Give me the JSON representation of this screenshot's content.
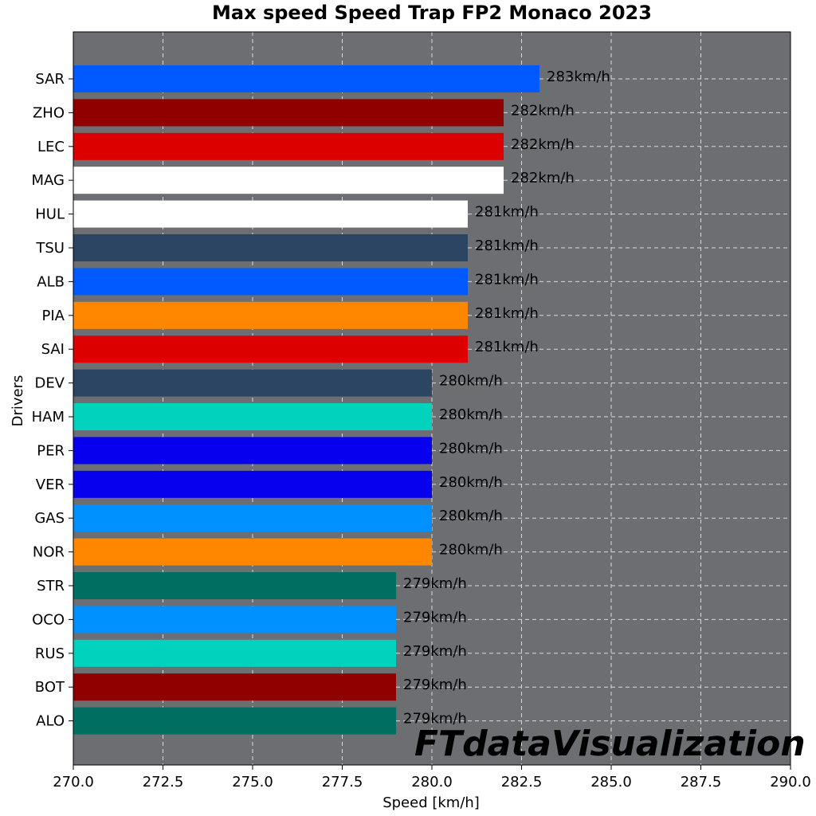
{
  "chart_data": {
    "type": "bar",
    "orientation": "horizontal",
    "title": "Max speed Speed Trap FP2 Monaco 2023",
    "xlabel": "Speed [km/h]",
    "ylabel": "Drivers",
    "xlim": [
      270.0,
      290.0
    ],
    "x_ticks": [
      "270.0",
      "272.5",
      "275.0",
      "277.5",
      "280.0",
      "282.5",
      "285.0",
      "287.5",
      "290.0"
    ],
    "grid": true,
    "background_color": "#6c6e72",
    "value_suffix": "km/h",
    "categories": [
      "SAR",
      "ZHO",
      "LEC",
      "MAG",
      "HUL",
      "TSU",
      "ALB",
      "PIA",
      "SAI",
      "DEV",
      "HAM",
      "PER",
      "VER",
      "GAS",
      "NOR",
      "STR",
      "OCO",
      "RUS",
      "BOT",
      "ALO"
    ],
    "values": [
      283,
      282,
      282,
      282,
      281,
      281,
      281,
      281,
      281,
      280,
      280,
      280,
      280,
      280,
      280,
      279,
      279,
      279,
      279,
      279
    ],
    "colors": [
      "#005aff",
      "#900000",
      "#dc0000",
      "#ffffff",
      "#ffffff",
      "#2b4562",
      "#005aff",
      "#ff8700",
      "#dc0000",
      "#2b4562",
      "#00d2be",
      "#0600ef",
      "#0600ef",
      "#0090ff",
      "#ff8700",
      "#006f62",
      "#0090ff",
      "#00d2be",
      "#900000",
      "#006f62"
    ]
  },
  "watermark": "FTdataVisualization"
}
